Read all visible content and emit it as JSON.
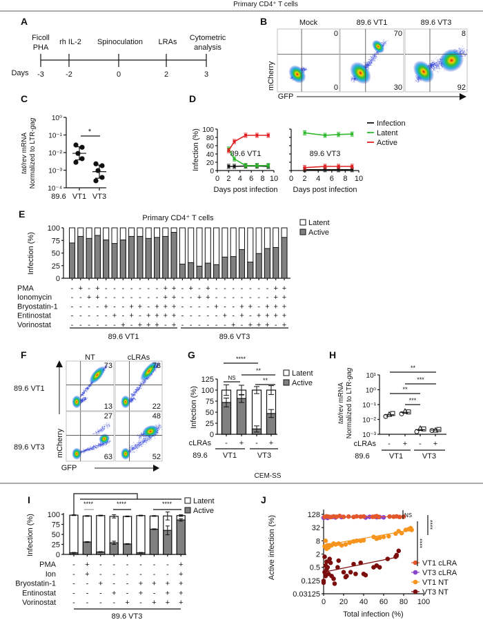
{
  "figure": {
    "header_primary": "Primary CD4⁺ T cells",
    "header_cemss": "CEM-SS",
    "panel_labels": {
      "A": "A",
      "B": "B",
      "C": "C",
      "D": "D",
      "E": "E",
      "F": "F",
      "G": "G",
      "H": "H",
      "I": "I",
      "J": "J"
    }
  },
  "panel_a": {
    "days_label": "Days",
    "events": [
      {
        "lines": [
          "Ficoll",
          "PHA"
        ],
        "day": "-3"
      },
      {
        "lines": [
          "rh IL-2"
        ],
        "day": "-2"
      },
      {
        "lines": [
          "Spinoculation"
        ],
        "day": "0"
      },
      {
        "lines": [
          "LRAs"
        ],
        "day": "2"
      },
      {
        "lines": [
          "Cytometric",
          "analysis"
        ],
        "day": "3"
      }
    ]
  },
  "panel_b": {
    "y_axis": "mCherry",
    "x_axis": "GFP",
    "plots": [
      {
        "title": "Mock",
        "upper_right": "0",
        "lower_right": "0"
      },
      {
        "title": "89.6 VT1",
        "upper_right": "70",
        "lower_right": "30"
      },
      {
        "title": "89.6 VT3",
        "upper_right": "8",
        "lower_right": "92"
      }
    ]
  },
  "panel_f": {
    "y_axis": "mCherry",
    "x_axis": "GFP",
    "columns": [
      "NT",
      "cLRAs"
    ],
    "rows": [
      {
        "label": "89.6 VT1",
        "plots": [
          {
            "upper_right": "73",
            "lower_right": "13"
          },
          {
            "upper_right": "78",
            "lower_right": "22"
          }
        ]
      },
      {
        "label": "89.6 VT3",
        "plots": [
          {
            "upper_right": "27",
            "lower_right": "63"
          },
          {
            "upper_right": "48",
            "lower_right": "52"
          }
        ]
      }
    ]
  },
  "colors": {
    "active": "#808080",
    "latent": "#ffffff",
    "infection": "#111111",
    "latent_line": "#2db82d",
    "active_line": "#e02020",
    "vt1_clra": "#e2572c",
    "vt3_clra": "#8a43cc",
    "vt1_nt": "#f7941d",
    "vt3_nt": "#7b0d0d"
  },
  "chart_data": [
    {
      "panel": "C",
      "type": "scatter",
      "ylabel": [
        {
          "italic": "tat/rev",
          "rest": " mRNA"
        },
        {
          "rest": "Normalized to LTR-",
          "italic": "gag"
        }
      ],
      "yscale": "log10",
      "ylim": [
        0.0001,
        1
      ],
      "yticks": [
        "10⁰",
        "10⁻¹",
        "10⁻²",
        "10⁻³",
        "10⁻⁴"
      ],
      "group_label": "89.6",
      "categories": [
        "VT1",
        "VT3"
      ],
      "values": [
        [
          0.027,
          0.02,
          0.009,
          0.0045,
          0.0028
        ],
        [
          0.0023,
          0.0018,
          0.00095,
          0.00039,
          0.00025
        ]
      ],
      "significance": [
        {
          "between": [
            "VT1",
            "VT3"
          ],
          "label": "*"
        }
      ]
    },
    {
      "panel": "D",
      "type": "line",
      "xlabel": "Days post infection",
      "ylabel": "Infection (%)",
      "xlim": [
        0,
        10
      ],
      "ylim": [
        0,
        100
      ],
      "xticks": [
        "0",
        "2",
        "4",
        "6",
        "8",
        "10"
      ],
      "yticks": [
        "0",
        "20",
        "40",
        "60",
        "80",
        "100"
      ],
      "legend": "right",
      "series_names": [
        "Infection",
        "Latent",
        "Active"
      ],
      "subplots": [
        {
          "title": "89.6 VT1",
          "x": [
            2,
            3,
            5,
            7,
            9
          ],
          "series": [
            {
              "name": "Infection",
              "values": [
                10,
                10,
                11,
                11,
                10
              ]
            },
            {
              "name": "Latent",
              "values": [
                52,
                28,
                12,
                12,
                12
              ]
            },
            {
              "name": "Active",
              "values": [
                48,
                70,
                85,
                85,
                85
              ]
            }
          ]
        },
        {
          "title": "89.6 VT3",
          "x": [
            2,
            5,
            7,
            9
          ],
          "series": [
            {
              "name": "Infection",
              "values": [
                2,
                2,
                2,
                2
              ]
            },
            {
              "name": "Latent",
              "values": [
                91,
                85,
                87,
                88
              ]
            },
            {
              "name": "Active",
              "values": [
                7,
                10,
                10,
                10
              ]
            }
          ]
        }
      ]
    },
    {
      "panel": "E",
      "type": "bar",
      "stacked": true,
      "title": "Primary CD4⁺ T cells",
      "ylabel": "Infection (%)",
      "ylim": [
        0,
        100
      ],
      "yticks": [
        "0",
        "25",
        "50",
        "75",
        "100"
      ],
      "legend": [
        "Latent",
        "Active"
      ],
      "groups": [
        "89.6 VT1",
        "89.6 VT3"
      ],
      "total": 100,
      "active": [
        70,
        83,
        79,
        85,
        76,
        69,
        76,
        83,
        83,
        79,
        81,
        83,
        91,
        28,
        31,
        24,
        30,
        27,
        42,
        43,
        57,
        32,
        49,
        59,
        61,
        81
      ],
      "treatments": [
        {
          "name": "PMA",
          "signs": [
            "-",
            "+",
            "-",
            "+",
            "-",
            "-",
            "-",
            "-",
            "-",
            "-",
            "-",
            "+",
            "+"
          ]
        },
        {
          "name": "Ionomycin",
          "signs": [
            "-",
            "-",
            "+",
            "+",
            "-",
            "-",
            "-",
            "-",
            "-",
            "-",
            "-",
            "+",
            "+"
          ]
        },
        {
          "name": "Bryostatin-1",
          "signs": [
            "-",
            "-",
            "-",
            "-",
            "+",
            "-",
            "-",
            "+",
            "+",
            "-",
            "+",
            "+",
            "+"
          ]
        },
        {
          "name": "Entinostat",
          "signs": [
            "-",
            "-",
            "-",
            "-",
            "-",
            "+",
            "-",
            "+",
            "-",
            "+",
            "+",
            "+",
            "+"
          ]
        },
        {
          "name": "Vorinostat",
          "signs": [
            "-",
            "-",
            "-",
            "-",
            "-",
            "-",
            "+",
            "-",
            "+",
            "+",
            "+",
            "-",
            "+"
          ]
        }
      ]
    },
    {
      "panel": "G",
      "type": "bar",
      "stacked": true,
      "ylabel": "Infection (%)",
      "ylim": [
        0,
        125
      ],
      "yticks": [
        "0",
        "25",
        "50",
        "75",
        "100",
        "125"
      ],
      "legend": [
        "Latent",
        "Active"
      ],
      "row_label": "cLRAs",
      "cLRAs": [
        "-",
        "+",
        "-",
        "+"
      ],
      "group_label": "89.6",
      "groups": [
        "VT1",
        "VT3"
      ],
      "active": [
        72,
        81,
        12,
        47
      ],
      "active_err": [
        10,
        9,
        7,
        9
      ],
      "total": [
        100,
        100,
        100,
        100
      ],
      "total_err": [
        12,
        11,
        8,
        10
      ],
      "significance": [
        {
          "between": [
            1,
            3
          ],
          "label": "****"
        },
        {
          "between": [
            1,
            2
          ],
          "label": "NS"
        },
        {
          "between": [
            2,
            4
          ],
          "label": "**"
        },
        {
          "between": [
            3,
            4
          ],
          "label": "**"
        }
      ]
    },
    {
      "panel": "H",
      "type": "scatter",
      "ylabel": [
        {
          "italic": "tat/",
          "rest": "rev mRNA"
        },
        {
          "rest": "Normalized to LTR-",
          "italic": "gag"
        }
      ],
      "yscale": "log10",
      "ylim": [
        0.001,
        10
      ],
      "yticks": [
        "10¹",
        "10⁰",
        "10⁻¹",
        "10⁻²",
        "10⁻³"
      ],
      "row_label": "cLRAs",
      "cLRAs": [
        "-",
        "+",
        "-",
        "+"
      ],
      "group_label": "89.6",
      "groups": [
        "VT1",
        "VT3"
      ],
      "values": [
        [
          0.016,
          0.022,
          0.025
        ],
        [
          0.024,
          0.036,
          0.032
        ],
        [
          0.0015,
          0.0025,
          0.0023
        ],
        [
          0.0018,
          0.0019,
          0.0021
        ]
      ],
      "markers": [
        "circle",
        "triangle",
        "square"
      ],
      "significance": [
        {
          "between": [
            1,
            4
          ],
          "label": "**"
        },
        {
          "between": [
            2,
            4
          ],
          "label": "***"
        },
        {
          "between": [
            1,
            3
          ],
          "label": "**"
        },
        {
          "between": [
            2,
            3
          ],
          "label": "***"
        }
      ]
    },
    {
      "panel": "I",
      "type": "bar",
      "stacked": true,
      "ylabel": "Infection (%)",
      "ylim": [
        0,
        100
      ],
      "yticks": [
        "0",
        "25",
        "50",
        "75",
        "100"
      ],
      "legend": [
        "Latent",
        "Active"
      ],
      "group": "89.6 VT3",
      "active": [
        4,
        31,
        6,
        29,
        26,
        4,
        63,
        60,
        86
      ],
      "active_err": [
        1,
        1,
        1,
        4,
        1,
        1,
        1,
        11,
        3
      ],
      "total": [
        98,
        96,
        97,
        95,
        95,
        97,
        96,
        96,
        97
      ],
      "total_err": [
        1,
        1,
        1,
        4,
        1,
        1,
        1,
        10,
        2
      ],
      "treatments": [
        {
          "name": "PMA",
          "signs": [
            "-",
            "+",
            "-",
            "-",
            "-",
            "-",
            "-",
            "-",
            "+"
          ]
        },
        {
          "name": "Ion",
          "signs": [
            "-",
            "+",
            "-",
            "-",
            "-",
            "-",
            "-",
            "-",
            "+"
          ]
        },
        {
          "name": "Bryostatin-1",
          "signs": [
            "-",
            "-",
            "+",
            "-",
            "-",
            "+",
            "+",
            "+",
            "+"
          ]
        },
        {
          "name": "Entinostat",
          "signs": [
            "-",
            "-",
            "-",
            "+",
            "-",
            "+",
            "-",
            "+",
            "+"
          ]
        },
        {
          "name": "Vorinostat",
          "signs": [
            "-",
            "-",
            "-",
            "-",
            "+",
            "-",
            "+",
            "+",
            "+"
          ]
        }
      ],
      "significance": [
        "****",
        "****",
        "****"
      ]
    },
    {
      "panel": "J",
      "type": "scatter",
      "xlabel": "Total infection (%)",
      "ylabel": "Active infection (%)",
      "xlim": [
        0,
        100
      ],
      "xticks": [
        "0",
        "20",
        "40",
        "60",
        "80",
        "100"
      ],
      "yscale": "log2",
      "ylim": [
        0.03125,
        128
      ],
      "yticks": [
        "128",
        "32",
        "8",
        "2",
        "0.5",
        "0.125",
        "0.03125"
      ],
      "legend_position": "right",
      "series": [
        {
          "name": "VT1 cLRA",
          "x": [
            1,
            3,
            5,
            7,
            10,
            13,
            16,
            20,
            25,
            30,
            33,
            37,
            40,
            49,
            51,
            53,
            55,
            66,
            70,
            73,
            76,
            80
          ],
          "y": [
            98,
            105,
            100,
            96,
            104,
            100,
            108,
            99,
            102,
            97,
            104,
            100,
            103,
            99,
            101,
            106,
            98,
            102,
            100,
            104,
            97,
            101
          ]
        },
        {
          "name": "VT3 cLRA",
          "x": [
            0,
            2,
            4,
            9,
            12,
            18,
            42,
            46,
            53,
            56,
            60
          ],
          "y": [
            90,
            95,
            88,
            98,
            93,
            96,
            92,
            99,
            95,
            97,
            94
          ]
        },
        {
          "name": "VT1 NT",
          "x": [
            1,
            2,
            3,
            4,
            5,
            6,
            8,
            10,
            12,
            15,
            18,
            22,
            26,
            30,
            33,
            37,
            40,
            50,
            53,
            56,
            60,
            65,
            72,
            75,
            78,
            82,
            85,
            87,
            88
          ],
          "y": [
            4.5,
            8,
            3.5,
            5,
            4,
            5,
            5,
            6,
            5.5,
            6,
            5,
            5.5,
            6.5,
            7.5,
            8,
            8,
            8.5,
            12,
            10,
            11,
            12,
            13,
            17,
            22,
            18,
            25,
            27,
            30,
            25
          ]
        },
        {
          "name": "VT3 NT",
          "x": [
            0,
            0,
            1,
            1,
            2,
            2,
            3,
            3,
            4,
            5,
            6,
            7,
            8,
            10,
            11,
            14,
            15,
            20,
            22,
            23,
            27,
            30,
            32,
            37,
            40,
            42,
            50,
            53,
            56,
            64,
            72,
            73,
            75
          ],
          "y": [
            0.1,
            0.12,
            1.5,
            0.3,
            0.6,
            0.2,
            0.9,
            0.4,
            0.5,
            0.25,
            1.2,
            0.8,
            0.2,
            0.15,
            0.09,
            0.5,
            1,
            0.3,
            0.18,
            0.2,
            0.3,
            0.7,
            0.25,
            0.8,
            0.25,
            0.22,
            0.5,
            0.6,
            0.5,
            1.2,
            1.5,
            1.8,
            2.8
          ]
        }
      ],
      "fits": [
        {
          "name": "VT1 cLRA",
          "from": [
            0,
            100
          ],
          "to": [
            80,
            100
          ]
        },
        {
          "name": "VT3 cLRA",
          "from": [
            0,
            95
          ],
          "to": [
            60,
            95
          ]
        },
        {
          "name": "VT1 NT",
          "from": [
            0,
            5
          ],
          "to": [
            88,
            25
          ]
        },
        {
          "name": "VT3 NT",
          "from": [
            0,
            0.3
          ],
          "to": [
            75,
            1.5
          ]
        }
      ],
      "significance": [
        "NS",
        "****",
        "****"
      ]
    }
  ]
}
